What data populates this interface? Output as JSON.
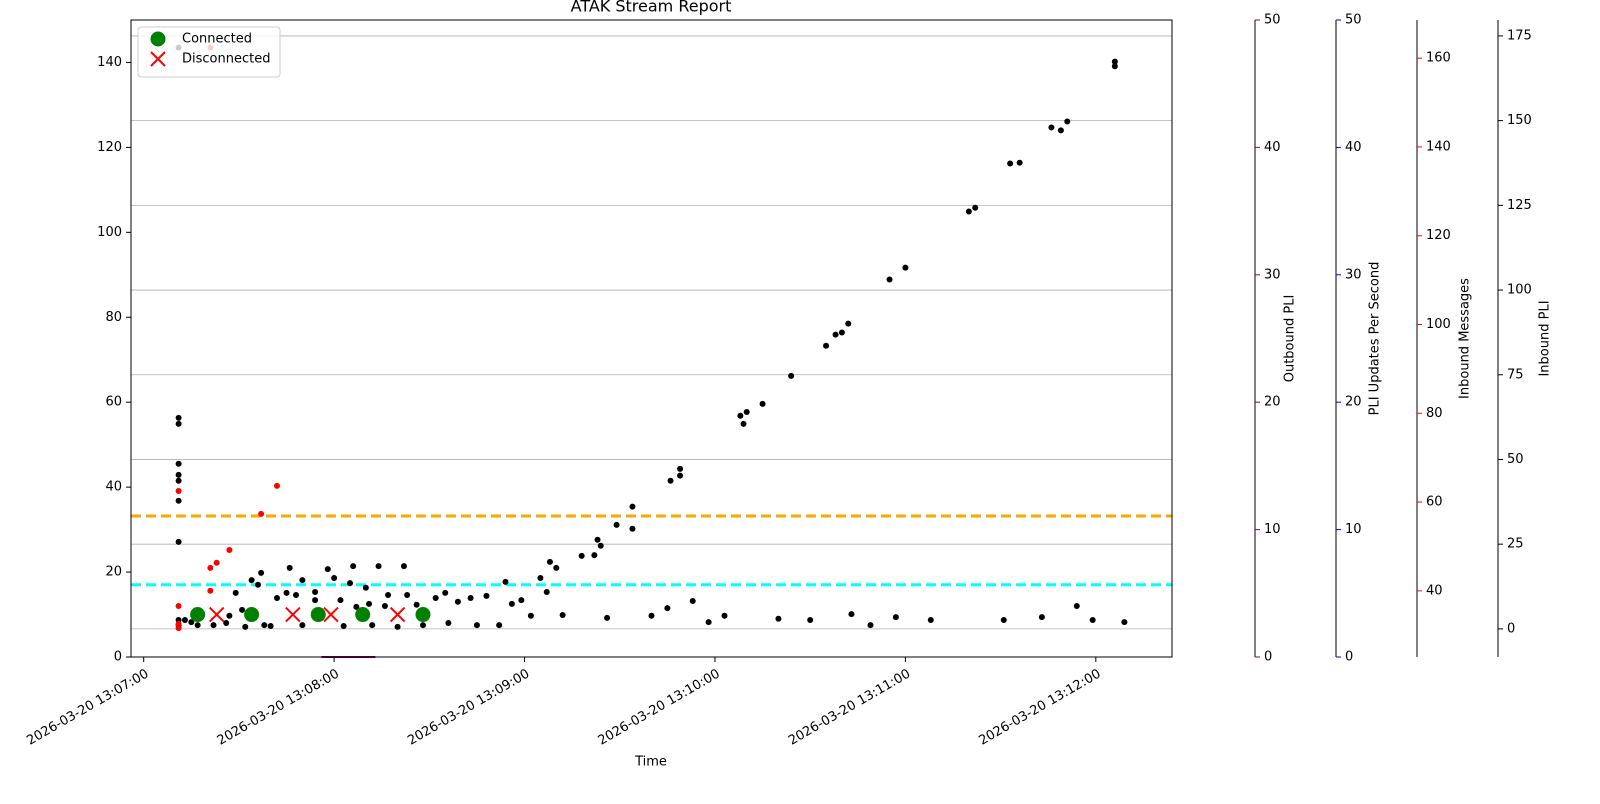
{
  "chart_data": {
    "type": "scatter",
    "title": "ATAK Stream Report",
    "xlabel": "Time",
    "xlim": [
      "2026-03-20 13:06:56",
      "2026-03-20 13:12:24"
    ],
    "xticks": [
      "2026-03-20 13:07:00",
      "2026-03-20 13:08:00",
      "2026-03-20 13:09:00",
      "2026-03-20 13:10:00",
      "2026-03-20 13:11:00",
      "2026-03-20 13:12:00"
    ],
    "ylim": [
      0,
      150
    ],
    "yticks": [
      0,
      20,
      40,
      60,
      80,
      100,
      120,
      140
    ],
    "legend": "upper left",
    "right_axes": [
      {
        "label": "Outbound PLI",
        "color": "#800080",
        "ylim": [
          0,
          50
        ],
        "yticks": [
          0,
          10,
          20,
          30,
          40,
          50
        ],
        "grid": false
      },
      {
        "label": "PLI Updates Per Second",
        "color": "#0000ff",
        "ylim": [
          0,
          50
        ],
        "yticks": [
          0,
          10,
          20,
          30,
          40,
          50
        ],
        "grid": false
      },
      {
        "label": "Inbound Messages",
        "color": "#ff0000",
        "ylim": [
          25.1,
          168.6
        ],
        "yticks": [
          40,
          60,
          80,
          100,
          120,
          140,
          160
        ],
        "grid": false
      },
      {
        "label": "Inbound PLI",
        "color": "#000000",
        "ylim": [
          -8.3,
          179.7
        ],
        "yticks": [
          0,
          25,
          50,
          75,
          100,
          125,
          150,
          175
        ],
        "grid": true
      }
    ],
    "hlines": [
      {
        "value": 33.2,
        "color": "#ffa500"
      },
      {
        "value": 17,
        "color": "#00ffff"
      }
    ],
    "series": [
      {
        "color": "#000000",
        "marker": "dot",
        "x": [
          "2026-03-20 13:07:11",
          "2026-03-20 13:07:11",
          "2026-03-20 13:07:11",
          "2026-03-20 13:07:11",
          "2026-03-20 13:07:11",
          "2026-03-20 13:07:11",
          "2026-03-20 13:07:11",
          "2026-03-20 13:07:11",
          "2026-03-20 13:07:11",
          "2026-03-20 13:07:11",
          "2026-03-20 13:07:13",
          "2026-03-20 13:07:15",
          "2026-03-20 13:07:17",
          "2026-03-20 13:07:22",
          "2026-03-20 13:07:26",
          "2026-03-20 13:07:27",
          "2026-03-20 13:07:29",
          "2026-03-20 13:07:31",
          "2026-03-20 13:07:32",
          "2026-03-20 13:07:34",
          "2026-03-20 13:07:36",
          "2026-03-20 13:07:37",
          "2026-03-20 13:07:38",
          "2026-03-20 13:07:40",
          "2026-03-20 13:07:42",
          "2026-03-20 13:07:45",
          "2026-03-20 13:07:46",
          "2026-03-20 13:07:48",
          "2026-03-20 13:07:50",
          "2026-03-20 13:07:50",
          "2026-03-20 13:07:54",
          "2026-03-20 13:07:54",
          "2026-03-20 13:07:58",
          "2026-03-20 13:08:00",
          "2026-03-20 13:08:02",
          "2026-03-20 13:08:03",
          "2026-03-20 13:08:05",
          "2026-03-20 13:08:06",
          "2026-03-20 13:08:07",
          "2026-03-20 13:08:10",
          "2026-03-20 13:08:11",
          "2026-03-20 13:08:12",
          "2026-03-20 13:08:14",
          "2026-03-20 13:08:16",
          "2026-03-20 13:08:17",
          "2026-03-20 13:08:20",
          "2026-03-20 13:08:22",
          "2026-03-20 13:08:23",
          "2026-03-20 13:08:26",
          "2026-03-20 13:08:28",
          "2026-03-20 13:08:32",
          "2026-03-20 13:08:35",
          "2026-03-20 13:08:36",
          "2026-03-20 13:08:39",
          "2026-03-20 13:08:43",
          "2026-03-20 13:08:45",
          "2026-03-20 13:08:48",
          "2026-03-20 13:08:52",
          "2026-03-20 13:08:54",
          "2026-03-20 13:08:56",
          "2026-03-20 13:08:59",
          "2026-03-20 13:09:02",
          "2026-03-20 13:09:05",
          "2026-03-20 13:09:07",
          "2026-03-20 13:09:08",
          "2026-03-20 13:09:10",
          "2026-03-20 13:09:12",
          "2026-03-20 13:09:18",
          "2026-03-20 13:09:22",
          "2026-03-20 13:09:23",
          "2026-03-20 13:09:24",
          "2026-03-20 13:09:26",
          "2026-03-20 13:09:29",
          "2026-03-20 13:09:34",
          "2026-03-20 13:09:34",
          "2026-03-20 13:09:40",
          "2026-03-20 13:09:45",
          "2026-03-20 13:09:46",
          "2026-03-20 13:09:49",
          "2026-03-20 13:09:49",
          "2026-03-20 13:09:53",
          "2026-03-20 13:09:58",
          "2026-03-20 13:10:03",
          "2026-03-20 13:10:08",
          "2026-03-20 13:10:09",
          "2026-03-20 13:10:10",
          "2026-03-20 13:10:15",
          "2026-03-20 13:10:20",
          "2026-03-20 13:10:24",
          "2026-03-20 13:10:30",
          "2026-03-20 13:10:35",
          "2026-03-20 13:10:38",
          "2026-03-20 13:10:40",
          "2026-03-20 13:10:42",
          "2026-03-20 13:10:43",
          "2026-03-20 13:10:49",
          "2026-03-20 13:10:55",
          "2026-03-20 13:10:57",
          "2026-03-20 13:11:00",
          "2026-03-20 13:11:08",
          "2026-03-20 13:11:20",
          "2026-03-20 13:11:22",
          "2026-03-20 13:11:31",
          "2026-03-20 13:11:33",
          "2026-03-20 13:11:36",
          "2026-03-20 13:11:43",
          "2026-03-20 13:11:46",
          "2026-03-20 13:11:49",
          "2026-03-20 13:11:51",
          "2026-03-20 13:11:54",
          "2026-03-20 13:11:59",
          "2026-03-20 13:12:06",
          "2026-03-20 13:12:06",
          "2026-03-20 13:12:09"
        ],
        "values": [
          56.3,
          54.9,
          45.5,
          42.9,
          41.5,
          36.8,
          27.1,
          8.7,
          7.5,
          143.5,
          8.7,
          8.2,
          7.5,
          7.5,
          8.0,
          9.7,
          15.1,
          11.1,
          7.1,
          18.1,
          17.0,
          19.8,
          7.5,
          7.3,
          13.9,
          15.1,
          21.0,
          14.6,
          18.1,
          7.5,
          15.3,
          13.4,
          20.7,
          18.6,
          13.4,
          7.3,
          17.4,
          21.4,
          11.8,
          16.3,
          12.5,
          7.5,
          21.4,
          12.0,
          14.6,
          7.1,
          21.4,
          14.6,
          12.3,
          7.5,
          13.9,
          15.1,
          8.0,
          13.0,
          13.9,
          7.5,
          14.4,
          7.5,
          17.7,
          12.5,
          13.4,
          9.7,
          18.6,
          15.3,
          22.4,
          21.0,
          9.9,
          23.8,
          24.0,
          27.6,
          26.2,
          9.2,
          31.1,
          30.2,
          35.4,
          9.7,
          11.5,
          41.5,
          42.7,
          44.3,
          13.2,
          8.2,
          9.7,
          56.8,
          54.9,
          57.7,
          59.6,
          9.0,
          66.2,
          8.7,
          73.3,
          75.9,
          76.4,
          78.5,
          10.1,
          7.5,
          88.9,
          9.4,
          91.7,
          8.7,
          104.9,
          105.8,
          8.7,
          116.2,
          116.4,
          9.4,
          124.7,
          124.0,
          126.1,
          12.0,
          8.7,
          140.2,
          139.1,
          8.2
        ]
      },
      {
        "color": "#ff0000",
        "marker": "dot",
        "x": [
          "2026-03-20 13:07:11",
          "2026-03-20 13:07:11",
          "2026-03-20 13:07:11",
          "2026-03-20 13:07:11",
          "2026-03-20 13:07:21",
          "2026-03-20 13:07:21",
          "2026-03-20 13:07:21",
          "2026-03-20 13:07:23",
          "2026-03-20 13:07:27",
          "2026-03-20 13:07:37",
          "2026-03-20 13:07:42"
        ],
        "values": [
          39.1,
          12.0,
          7.8,
          6.8,
          143.5,
          15.6,
          21.0,
          22.2,
          25.2,
          33.7,
          40.3
        ]
      },
      {
        "color": "#800080",
        "marker": "line",
        "x": [
          "2026-03-20 13:07:56",
          "2026-03-20 13:08:13"
        ],
        "values": [
          0,
          0
        ]
      },
      {
        "name": "Connected",
        "color": "#008000",
        "marker": "circle",
        "x": [
          "2026-03-20 13:07:17",
          "2026-03-20 13:07:34",
          "2026-03-20 13:07:55",
          "2026-03-20 13:08:09",
          "2026-03-20 13:08:28"
        ],
        "values": [
          10,
          10,
          10,
          10,
          10
        ]
      },
      {
        "name": "Disconnected",
        "color": "#ff0000",
        "marker": "x",
        "x": [
          "2026-03-20 13:07:23",
          "2026-03-20 13:07:47",
          "2026-03-20 13:07:59",
          "2026-03-20 13:08:20"
        ],
        "values": [
          10,
          10,
          10,
          10
        ]
      }
    ]
  }
}
